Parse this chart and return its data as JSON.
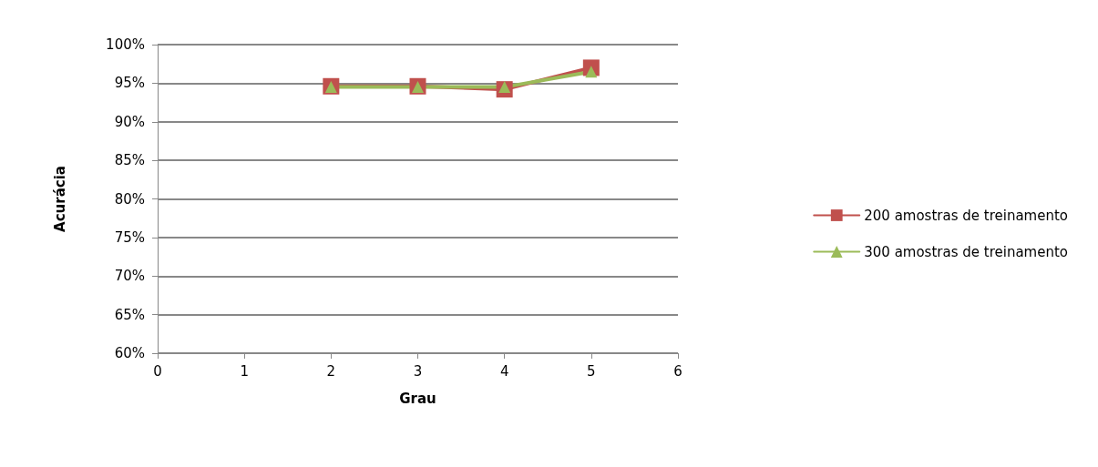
{
  "chart_data": {
    "type": "line",
    "xlabel": "Grau",
    "ylabel": "Acurácia",
    "xlim": [
      0,
      6
    ],
    "xticks": [
      0,
      1,
      2,
      3,
      4,
      5,
      6
    ],
    "ylim": [
      60,
      100
    ],
    "yticks": [
      {
        "value": 60,
        "label": "60%"
      },
      {
        "value": 65,
        "label": "65%"
      },
      {
        "value": 70,
        "label": "70%"
      },
      {
        "value": 75,
        "label": "75%"
      },
      {
        "value": 80,
        "label": "80%"
      },
      {
        "value": 85,
        "label": "85%"
      },
      {
        "value": 90,
        "label": "90%"
      },
      {
        "value": 95,
        "label": "95%"
      },
      {
        "value": 100,
        "label": "100%"
      }
    ],
    "grid": "y",
    "legend": "right",
    "line_style": "solid",
    "series": [
      {
        "name": "200 amostras de treinamento",
        "color": "#c0504d",
        "marker": "square",
        "x": [
          2,
          3,
          4,
          5
        ],
        "values": [
          94.6,
          94.6,
          94.2,
          97.0
        ]
      },
      {
        "name": "300 amostras de treinamento",
        "color": "#9bbb59",
        "marker": "triangle",
        "x": [
          2,
          3,
          4,
          5
        ],
        "values": [
          94.5,
          94.5,
          94.5,
          96.5
        ]
      }
    ]
  }
}
